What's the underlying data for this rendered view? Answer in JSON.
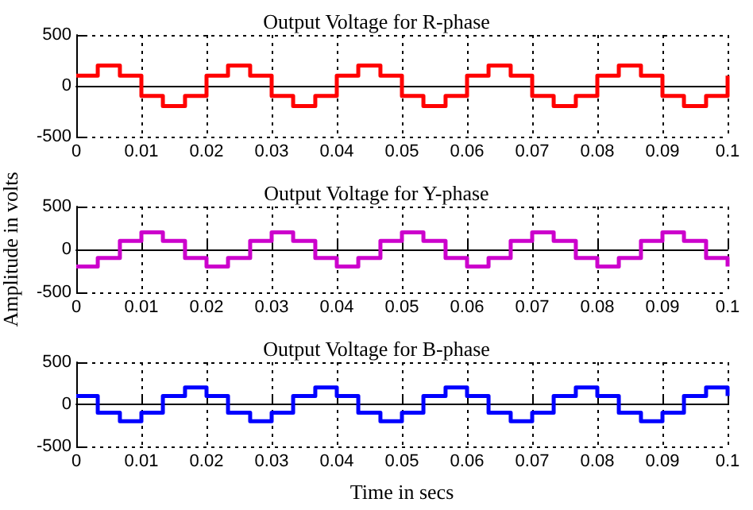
{
  "chart_data": [
    {
      "type": "step",
      "title": "Output Voltage for R-phase",
      "x": [
        0,
        0.0033,
        0.0067,
        0.01,
        0.0133,
        0.0167,
        0.02,
        0.0233,
        0.0267,
        0.03,
        0.0333,
        0.0367,
        0.04,
        0.0433,
        0.0467,
        0.05,
        0.0533,
        0.0567,
        0.06,
        0.0633,
        0.0667,
        0.07,
        0.0733,
        0.0767,
        0.08,
        0.0833,
        0.0867,
        0.09,
        0.0933,
        0.0967,
        0.1
      ],
      "series": [
        {
          "color": "#ff0000",
          "values": [
            100,
            200,
            100,
            -100,
            -200,
            -100,
            100,
            200,
            100,
            -100,
            -200,
            -100,
            100,
            200,
            100,
            -100,
            -200,
            -100,
            100,
            200,
            100,
            -100,
            -200,
            -100,
            100,
            200,
            100,
            -100,
            -200,
            -100,
            100
          ]
        }
      ],
      "xlim": [
        0,
        0.1
      ],
      "xticks": [
        0,
        0.01,
        0.02,
        0.03,
        0.04,
        0.05,
        0.06,
        0.07,
        0.08,
        0.09,
        0.1
      ],
      "ylim": [
        -500,
        500
      ],
      "yticks": [
        -500,
        0,
        500
      ],
      "grid": true
    },
    {
      "type": "step",
      "title": "Output Voltage for Y-phase",
      "ylabel": "Amplitude in volts",
      "x": [
        0,
        0.0033,
        0.0067,
        0.01,
        0.0133,
        0.0167,
        0.02,
        0.0233,
        0.0267,
        0.03,
        0.0333,
        0.0367,
        0.04,
        0.0433,
        0.0467,
        0.05,
        0.0533,
        0.0567,
        0.06,
        0.0633,
        0.0667,
        0.07,
        0.0733,
        0.0767,
        0.08,
        0.0833,
        0.0867,
        0.09,
        0.0933,
        0.0967,
        0.1
      ],
      "series": [
        {
          "color": "#cc00cc",
          "values": [
            -200,
            -100,
            100,
            200,
            100,
            -100,
            -200,
            -100,
            100,
            200,
            100,
            -100,
            -200,
            -100,
            100,
            200,
            100,
            -100,
            -200,
            -100,
            100,
            200,
            100,
            -100,
            -200,
            -100,
            100,
            200,
            100,
            -100,
            -200
          ]
        }
      ],
      "xlim": [
        0,
        0.1
      ],
      "xticks": [
        0,
        0.01,
        0.02,
        0.03,
        0.04,
        0.05,
        0.06,
        0.07,
        0.08,
        0.09,
        0.1
      ],
      "ylim": [
        -500,
        500
      ],
      "yticks": [
        -500,
        0,
        500
      ],
      "grid": true
    },
    {
      "type": "step",
      "title": "Output Voltage for B-phase",
      "xlabel": "Time in secs",
      "x": [
        0,
        0.0033,
        0.0067,
        0.01,
        0.0133,
        0.0167,
        0.02,
        0.0233,
        0.0267,
        0.03,
        0.0333,
        0.0367,
        0.04,
        0.0433,
        0.0467,
        0.05,
        0.0533,
        0.0567,
        0.06,
        0.0633,
        0.0667,
        0.07,
        0.0733,
        0.0767,
        0.08,
        0.0833,
        0.0867,
        0.09,
        0.0933,
        0.0967,
        0.1
      ],
      "series": [
        {
          "color": "#0000ff",
          "values": [
            100,
            -100,
            -200,
            -100,
            100,
            200,
            100,
            -100,
            -200,
            -100,
            100,
            200,
            100,
            -100,
            -200,
            -100,
            100,
            200,
            100,
            -100,
            -200,
            -100,
            100,
            200,
            100,
            -100,
            -200,
            -100,
            100,
            200,
            100
          ]
        }
      ],
      "xlim": [
        0,
        0.1
      ],
      "xticks": [
        0,
        0.01,
        0.02,
        0.03,
        0.04,
        0.05,
        0.06,
        0.07,
        0.08,
        0.09,
        0.1
      ],
      "ylim": [
        -500,
        500
      ],
      "yticks": [
        -500,
        0,
        500
      ],
      "grid": true
    }
  ]
}
